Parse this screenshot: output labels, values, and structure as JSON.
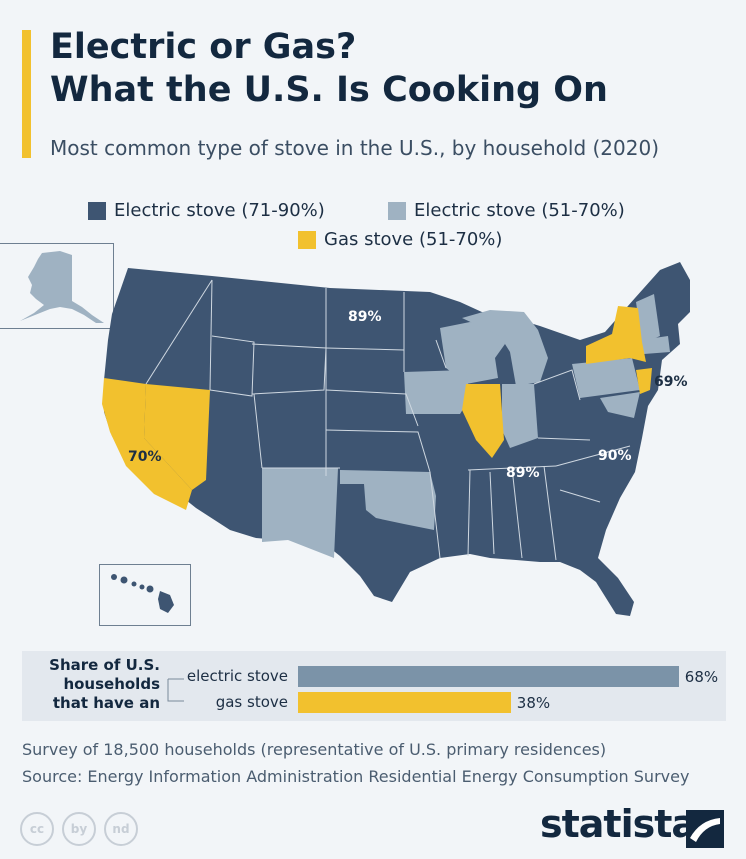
{
  "title_line1": "Electric or Gas?",
  "title_line2": "What the U.S. Is Cooking On",
  "subtitle": "Most common type of stove in the U.S., by household (2020)",
  "legend": [
    {
      "label": "Electric stove (71-90%)",
      "color": "#3e5572"
    },
    {
      "label": "Electric stove (51-70%)",
      "color": "#9fb2c2"
    },
    {
      "label": "Gas stove (51-70%)",
      "color": "#f2c12e"
    }
  ],
  "map_labels": {
    "north_dakota": "89%",
    "california": "70%",
    "new_jersey": "69%",
    "tennessee": "89%",
    "north_carolina": "90%"
  },
  "share": {
    "label": "Share of U.S. households that have an",
    "items": [
      {
        "name": "electric stove",
        "value": 68,
        "value_label": "68%",
        "color": "#7b93a8"
      },
      {
        "name": "gas stove",
        "value": 38,
        "value_label": "38%",
        "color": "#f2c12e"
      }
    ]
  },
  "footnotes": {
    "survey": "Survey of 18,500 households (representative of U.S. primary residences)",
    "source": "Source: Energy Information Administration Residential Energy Consumption Survey"
  },
  "brand": "statista",
  "license_icons": [
    "cc",
    "by",
    "nd"
  ]
}
